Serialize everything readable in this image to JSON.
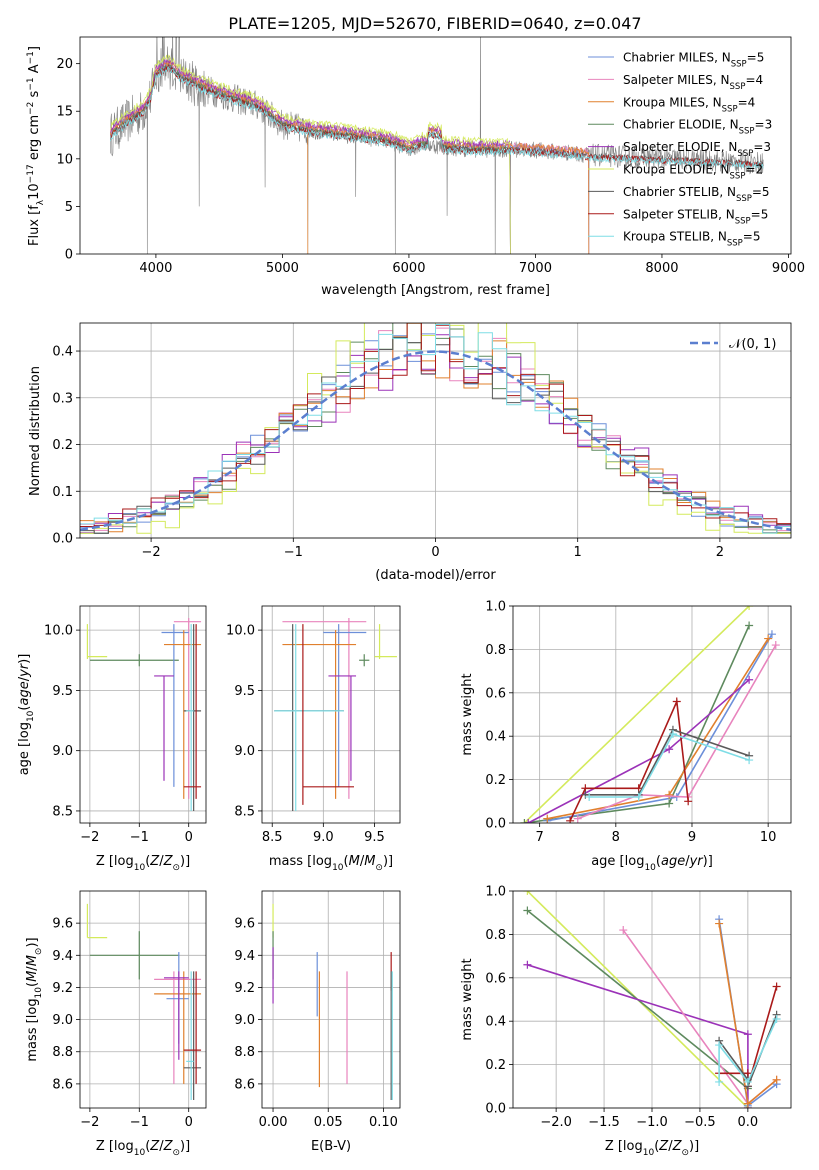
{
  "title": "PLATE=1205, MJD=52670, FIBERID=0640, z=0.047",
  "colors": {
    "Chabrier MILES": "#6c8fd9",
    "Salpeter MILES": "#e884bd",
    "Kroupa MILES": "#e0802e",
    "Chabrier ELODIE": "#5e8a5e",
    "Salpeter ELODIE": "#9b32b8",
    "Kroupa ELODIE": "#d4ea5c",
    "Chabrier STELIB": "#5a5a5a",
    "Salpeter STELIB": "#aa1a1a",
    "Kroupa STELIB": "#7fdde6",
    "data": "#808080",
    "normal": "#5b7fcf"
  },
  "chart_data": [
    {
      "id": "spectrum",
      "type": "line",
      "title": "PLATE=1205, MJD=52670, FIBERID=0640, z=0.047",
      "xlabel": "wavelength [Angstrom, rest frame]",
      "ylabel": "Flux [f_λ 10^-17 erg cm^-2 s^-1 A^-1]",
      "xlim": [
        3400,
        9020
      ],
      "ylim": [
        0,
        22.8
      ],
      "xticks": [
        4000,
        5000,
        6000,
        7000,
        8000,
        9000
      ],
      "yticks": [
        0,
        5,
        10,
        15,
        20
      ],
      "grid": false,
      "legend_position": "top-right",
      "continuum": {
        "x": [
          3640,
          3700,
          3800,
          3900,
          3960,
          4000,
          4100,
          4200,
          4400,
          4600,
          4800,
          5000,
          5200,
          5400,
          5600,
          5800,
          5900,
          6000,
          6100,
          6300,
          6500,
          6700,
          6900,
          7100,
          7300,
          7420
        ],
        "y": [
          12.5,
          13.2,
          14.2,
          15.0,
          16.5,
          19.0,
          19.8,
          18.6,
          17.3,
          16.4,
          15.6,
          13.6,
          13.0,
          12.7,
          12.3,
          12.0,
          11.6,
          11.0,
          11.6,
          11.2,
          11.0,
          11.0,
          11.0,
          10.8,
          10.6,
          10.4
        ]
      },
      "spikes_data": [
        {
          "x": 3930,
          "y": 0
        },
        {
          "x": 4130,
          "y": 26
        },
        {
          "x": 4340,
          "y": 5
        },
        {
          "x": 4861,
          "y": 7
        },
        {
          "x": 5199,
          "y": 0
        },
        {
          "x": 5577,
          "y": 6
        },
        {
          "x": 5890,
          "y": 0
        },
        {
          "x": 6300,
          "y": 4
        },
        {
          "x": 6563,
          "y": 26
        },
        {
          "x": 6680,
          "y": 0
        },
        {
          "x": 6800,
          "y": 0
        },
        {
          "x": 7420,
          "y": 0
        }
      ],
      "series": [
        {
          "name": "Chabrier MILES, N_SSP=5",
          "label_main": "Chabrier MILES, N",
          "label_sub": "SSP",
          "label_tail": "=5",
          "key": "Chabrier MILES",
          "x_end": 7420,
          "offset": 0.2
        },
        {
          "name": "Salpeter MILES, N_SSP=4",
          "label_main": "Salpeter MILES, N",
          "label_sub": "SSP",
          "label_tail": "=4",
          "key": "Salpeter MILES",
          "x_end": 7420,
          "offset": 0.35
        },
        {
          "name": "Kroupa MILES, N_SSP=4",
          "label_main": "Kroupa MILES, N",
          "label_sub": "SSP",
          "label_tail": "=4",
          "key": "Kroupa MILES",
          "x_end": 7420,
          "offset": 0.3
        },
        {
          "name": "Chabrier ELODIE, N_SSP=3",
          "label_main": "Chabrier ELODIE, N",
          "label_sub": "SSP",
          "label_tail": "=3",
          "key": "Chabrier ELODIE",
          "x_end": 6800,
          "offset": 0.0
        },
        {
          "name": "Salpeter ELODIE, N_SSP=3",
          "label_main": "Salpeter ELODIE, N",
          "label_sub": "SSP",
          "label_tail": "=3",
          "key": "Salpeter ELODIE",
          "x_end": 6800,
          "offset": 0.6
        },
        {
          "name": "Kroupa ELODIE, N_SSP=2",
          "label_main": "Kroupa ELODIE, N",
          "label_sub": "SSP",
          "label_tail": "=2",
          "key": "Kroupa ELODIE",
          "x_end": 6800,
          "offset": 0.9
        },
        {
          "name": "Chabrier STELIB, N_SSP=5",
          "label_main": "Chabrier STELIB, N",
          "label_sub": "SSP",
          "label_tail": "=5",
          "key": "Chabrier STELIB",
          "x_end": 8800,
          "offset": -0.1
        },
        {
          "name": "Salpeter STELIB, N_SSP=5",
          "label_main": "Salpeter STELIB, N",
          "label_sub": "SSP",
          "label_tail": "=5",
          "key": "Salpeter STELIB",
          "x_end": 8800,
          "offset": -0.2
        },
        {
          "name": "Kroupa STELIB, N_SSP=5",
          "label_main": "Kroupa STELIB, N",
          "label_sub": "SSP",
          "label_tail": "=5",
          "key": "Kroupa STELIB",
          "x_end": 8800,
          "offset": -0.3
        }
      ]
    },
    {
      "id": "residuals",
      "type": "line",
      "xlabel": "(data-model)/error",
      "ylabel": "Normed distribution",
      "xlim": [
        -2.5,
        2.5
      ],
      "ylim": [
        0,
        0.46
      ],
      "xticks": [
        -2,
        -1,
        0,
        1,
        2
      ],
      "yticks": [
        0.0,
        0.1,
        0.2,
        0.3,
        0.4
      ],
      "grid": true,
      "legend_position": "top-right",
      "legend": [
        "𝒩(0, 1)"
      ],
      "bin_width": 0.1,
      "series_keys": [
        "Chabrier MILES",
        "Salpeter MILES",
        "Kroupa MILES",
        "Chabrier ELODIE",
        "Salpeter ELODIE",
        "Kroupa ELODIE",
        "Chabrier STELIB",
        "Salpeter STELIB",
        "Kroupa STELIB"
      ],
      "series_seeds": [
        11,
        23,
        37,
        41,
        53,
        67,
        71,
        83,
        97
      ],
      "series_width": [
        1.0,
        1.0,
        1.0,
        0.95,
        1.05,
        0.85,
        1.0,
        1.02,
        1.0
      ]
    },
    {
      "id": "age_vs_Z",
      "type": "errorbar",
      "xlabel": "Z [log10(Z/Z⊙)]",
      "ylabel": "age [log10(age/yr)]",
      "xlim": [
        -2.2,
        0.35
      ],
      "ylim": [
        8.4,
        10.2
      ],
      "xticks": [
        -2,
        -1,
        0
      ],
      "yticks": [
        8.5,
        9.0,
        9.5,
        10.0
      ],
      "grid": true,
      "points": [
        {
          "key": "Kroupa ELODIE",
          "x": -2.05,
          "y": 9.98,
          "xlo": -2.05,
          "xhi": -1.65,
          "ylo": 9.76,
          "yhi": 10.05,
          "hy": 9.78
        },
        {
          "key": "Chabrier ELODIE",
          "x": -1.0,
          "y": 9.75,
          "xlo": -2.0,
          "xhi": -0.2,
          "ylo": 9.7,
          "yhi": 9.8
        },
        {
          "key": "Salpeter MILES",
          "x": 0.0,
          "y": 10.07,
          "xlo": -0.3,
          "xhi": 0.25,
          "ylo": 8.6,
          "yhi": 10.1
        },
        {
          "key": "Chabrier MILES",
          "x": -0.3,
          "y": 9.98,
          "xlo": -0.55,
          "xhi": 0.0,
          "ylo": 8.7,
          "yhi": 10.05
        },
        {
          "key": "Kroupa MILES",
          "x": -0.1,
          "y": 9.88,
          "xlo": -0.5,
          "xhi": 0.25,
          "ylo": 8.6,
          "yhi": 10.0
        },
        {
          "key": "Salpeter ELODIE",
          "x": -0.5,
          "y": 9.62,
          "xlo": -0.7,
          "xhi": -0.3,
          "ylo": 8.75,
          "yhi": 9.62
        },
        {
          "key": "Chabrier STELIB",
          "x": 0.1,
          "y": 9.33,
          "xlo": -0.1,
          "xhi": 0.25,
          "ylo": 8.5,
          "yhi": 10.05
        },
        {
          "key": "Kroupa STELIB",
          "x": 0.05,
          "y": 9.33,
          "xlo": -0.05,
          "xhi": 0.1,
          "ylo": 8.5,
          "yhi": 10.05
        },
        {
          "key": "Salpeter STELIB",
          "x": 0.15,
          "y": 8.7,
          "xlo": -0.1,
          "xhi": 0.25,
          "ylo": 8.6,
          "yhi": 10.05
        }
      ]
    },
    {
      "id": "age_vs_mass",
      "type": "errorbar",
      "xlabel": "mass [log10(M/M⊙)]",
      "ylabel": "",
      "xlim": [
        8.4,
        9.75
      ],
      "ylim": [
        8.4,
        10.2
      ],
      "xticks": [
        8.5,
        9.0,
        9.5
      ],
      "yticks": [
        8.5,
        9.0,
        9.5,
        10.0
      ],
      "grid": true,
      "points": [
        {
          "key": "Kroupa ELODIE",
          "x": 9.55,
          "y": 9.78,
          "xlo": 9.5,
          "xhi": 9.72,
          "ylo": 9.76,
          "yhi": 10.05
        },
        {
          "key": "Chabrier ELODIE",
          "x": 9.4,
          "y": 9.75,
          "xlo": 9.35,
          "xhi": 9.45,
          "ylo": 9.7,
          "yhi": 9.8
        },
        {
          "key": "Salpeter MILES",
          "x": 9.25,
          "y": 10.07,
          "xlo": 8.6,
          "xhi": 9.42,
          "ylo": 8.6,
          "yhi": 10.1
        },
        {
          "key": "Chabrier MILES",
          "x": 9.15,
          "y": 9.98,
          "xlo": 9.0,
          "xhi": 9.42,
          "ylo": 8.7,
          "yhi": 10.05
        },
        {
          "key": "Kroupa MILES",
          "x": 9.12,
          "y": 9.88,
          "xlo": 8.6,
          "xhi": 9.32,
          "ylo": 8.6,
          "yhi": 10.0
        },
        {
          "key": "Salpeter ELODIE",
          "x": 9.27,
          "y": 9.62,
          "xlo": 9.05,
          "xhi": 9.32,
          "ylo": 8.75,
          "yhi": 9.62
        },
        {
          "key": "Chabrier STELIB",
          "x": 8.7,
          "y": 9.33,
          "xlo": 8.52,
          "xhi": 9.2,
          "ylo": 8.5,
          "yhi": 10.05
        },
        {
          "key": "Kroupa STELIB",
          "x": 8.73,
          "y": 9.33,
          "xlo": 8.52,
          "xhi": 9.2,
          "ylo": 8.5,
          "yhi": 10.05
        },
        {
          "key": "Salpeter STELIB",
          "x": 8.8,
          "y": 8.7,
          "xlo": 8.8,
          "xhi": 9.3,
          "ylo": 8.55,
          "yhi": 10.05
        }
      ]
    },
    {
      "id": "weight_vs_age",
      "type": "line",
      "xlabel": "age [log10(age/yr)]",
      "ylabel": "mass weight",
      "xlim": [
        6.65,
        10.3
      ],
      "ylim": [
        0,
        1.0
      ],
      "xticks": [
        7,
        8,
        9,
        10
      ],
      "yticks": [
        0.0,
        0.2,
        0.4,
        0.6,
        0.8,
        1.0
      ],
      "grid": true,
      "series": [
        {
          "key": "Kroupa ELODIE",
          "x": [
            6.8,
            9.75
          ],
          "y": [
            0.0,
            1.0
          ]
        },
        {
          "key": "Chabrier ELODIE",
          "x": [
            6.8,
            8.7,
            9.75
          ],
          "y": [
            0.0,
            0.09,
            0.91
          ]
        },
        {
          "key": "Chabrier MILES",
          "x": [
            7.1,
            8.8,
            10.05
          ],
          "y": [
            0.01,
            0.12,
            0.87
          ]
        },
        {
          "key": "Kroupa MILES",
          "x": [
            7.1,
            8.7,
            10.0
          ],
          "y": [
            0.02,
            0.13,
            0.85
          ]
        },
        {
          "key": "Salpeter MILES",
          "x": [
            7.5,
            8.3,
            8.95,
            10.1
          ],
          "y": [
            0.02,
            0.13,
            0.12,
            0.82
          ]
        },
        {
          "key": "Salpeter ELODIE",
          "x": [
            6.85,
            8.7,
            9.75
          ],
          "y": [
            0.0,
            0.34,
            0.66
          ]
        },
        {
          "key": "Salpeter STELIB",
          "x": [
            7.4,
            7.6,
            8.3,
            8.8,
            8.95
          ],
          "y": [
            0.01,
            0.16,
            0.16,
            0.56,
            0.1
          ]
        },
        {
          "key": "Chabrier STELIB",
          "x": [
            7.6,
            8.3,
            8.75,
            9.75
          ],
          "y": [
            0.13,
            0.13,
            0.43,
            0.31
          ]
        },
        {
          "key": "Kroupa STELIB",
          "x": [
            7.65,
            8.3,
            8.75,
            9.75
          ],
          "y": [
            0.12,
            0.12,
            0.41,
            0.29
          ]
        }
      ]
    },
    {
      "id": "mass_vs_Z",
      "type": "errorbar",
      "xlabel": "Z [log10(Z/Z⊙)]",
      "ylabel": "mass [log10(M/M⊙)]",
      "xlim": [
        -2.2,
        0.35
      ],
      "ylim": [
        8.45,
        9.8
      ],
      "xticks": [
        -2,
        -1,
        0
      ],
      "yticks": [
        8.6,
        8.8,
        9.0,
        9.2,
        9.4,
        9.6
      ],
      "grid": true,
      "points": [
        {
          "key": "Kroupa ELODIE",
          "x": -2.05,
          "y": 9.51,
          "xlo": -2.05,
          "xhi": -1.65,
          "ylo": 9.51,
          "yhi": 9.72
        },
        {
          "key": "Chabrier ELODIE",
          "x": -1.0,
          "y": 9.4,
          "xlo": -2.0,
          "xhi": -0.2,
          "ylo": 9.25,
          "yhi": 9.55
        },
        {
          "key": "Salpeter MILES",
          "x": -0.3,
          "y": 9.25,
          "xlo": -0.7,
          "xhi": 0.25,
          "ylo": 8.6,
          "yhi": 9.3
        },
        {
          "key": "Chabrier MILES",
          "x": -0.2,
          "y": 9.13,
          "xlo": -0.45,
          "xhi": 0.0,
          "ylo": 8.85,
          "yhi": 9.42
        },
        {
          "key": "Kroupa MILES",
          "x": -0.1,
          "y": 9.16,
          "xlo": -0.7,
          "xhi": 0.25,
          "ylo": 8.6,
          "yhi": 9.3
        },
        {
          "key": "Salpeter ELODIE",
          "x": -0.2,
          "y": 9.26,
          "xlo": -0.5,
          "xhi": 0.0,
          "ylo": 8.75,
          "yhi": 9.3
        },
        {
          "key": "Chabrier STELIB",
          "x": 0.1,
          "y": 8.7,
          "xlo": -0.1,
          "xhi": 0.25,
          "ylo": 8.5,
          "yhi": 9.3
        },
        {
          "key": "Kroupa STELIB",
          "x": 0.05,
          "y": 8.74,
          "xlo": -0.05,
          "xhi": 0.1,
          "ylo": 8.5,
          "yhi": 9.3
        },
        {
          "key": "Salpeter STELIB",
          "x": 0.15,
          "y": 8.81,
          "xlo": -0.1,
          "xhi": 0.25,
          "ylo": 8.6,
          "yhi": 9.3
        }
      ]
    },
    {
      "id": "mass_vs_ebv",
      "type": "errorbar",
      "xlabel": "E(B-V)",
      "ylabel": "",
      "xlim": [
        -0.01,
        0.115
      ],
      "ylim": [
        8.45,
        9.8
      ],
      "xticks": [
        0.0,
        0.05,
        0.1
      ],
      "yticks": [
        8.6,
        8.8,
        9.0,
        9.2,
        9.4,
        9.6
      ],
      "grid": true,
      "points": [
        {
          "key": "Kroupa ELODIE",
          "x": 0.0,
          "y": 9.6,
          "ylo": 9.51,
          "yhi": 9.72
        },
        {
          "key": "Chabrier ELODIE",
          "x": 0.0,
          "y": 9.4,
          "ylo": 9.25,
          "yhi": 9.55
        },
        {
          "key": "Salpeter ELODIE",
          "x": 0.0,
          "y": 9.26,
          "ylo": 9.1,
          "yhi": 9.45
        },
        {
          "key": "Chabrier MILES",
          "x": 0.04,
          "y": 9.13,
          "ylo": 9.02,
          "yhi": 9.42
        },
        {
          "key": "Kroupa MILES",
          "x": 0.042,
          "y": 9.16,
          "ylo": 8.58,
          "yhi": 9.3
        },
        {
          "key": "Salpeter MILES",
          "x": 0.067,
          "y": 9.25,
          "ylo": 8.6,
          "yhi": 9.3
        },
        {
          "key": "Salpeter STELIB",
          "x": 0.107,
          "y": 9.3,
          "ylo": 9.18,
          "yhi": 9.42
        },
        {
          "key": "Chabrier STELIB",
          "x": 0.107,
          "y": 8.7,
          "ylo": 8.5,
          "yhi": 9.3
        },
        {
          "key": "Kroupa STELIB",
          "x": 0.108,
          "y": 8.74,
          "ylo": 8.5,
          "yhi": 9.3
        }
      ]
    },
    {
      "id": "weight_vs_Z",
      "type": "line",
      "xlabel": "Z [log10(Z/Z⊙)]",
      "ylabel": "mass weight",
      "xlim": [
        -2.45,
        0.45
      ],
      "ylim": [
        0,
        1.0
      ],
      "xticks": [
        -2.0,
        -1.5,
        -1.0,
        -0.5,
        0.0
      ],
      "yticks": [
        0.0,
        0.2,
        0.4,
        0.6,
        0.8,
        1.0
      ],
      "grid": true,
      "series": [
        {
          "key": "Kroupa ELODIE",
          "x": [
            -2.3,
            0.0
          ],
          "y": [
            1.0,
            0.0
          ]
        },
        {
          "key": "Chabrier ELODIE",
          "x": [
            -2.3,
            0.0
          ],
          "y": [
            0.91,
            0.09
          ]
        },
        {
          "key": "Salpeter ELODIE",
          "x": [
            -2.3,
            0.0,
            0.0
          ],
          "y": [
            0.66,
            0.34,
            0.0
          ]
        },
        {
          "key": "Salpeter MILES",
          "x": [
            -1.3,
            0.0,
            0.3
          ],
          "y": [
            0.82,
            0.02,
            0.13
          ]
        },
        {
          "key": "Chabrier MILES",
          "x": [
            -0.3,
            0.0,
            0.3
          ],
          "y": [
            0.87,
            0.01,
            0.11
          ]
        },
        {
          "key": "Kroupa MILES",
          "x": [
            -0.3,
            0.0,
            0.3
          ],
          "y": [
            0.85,
            0.02,
            0.13
          ]
        },
        {
          "key": "Salpeter STELIB",
          "x": [
            -0.3,
            0.0,
            0.0,
            0.3
          ],
          "y": [
            0.16,
            0.16,
            0.1,
            0.56
          ]
        },
        {
          "key": "Chabrier STELIB",
          "x": [
            -0.3,
            0.0,
            0.0,
            0.3
          ],
          "y": [
            0.31,
            0.13,
            0.1,
            0.43
          ]
        },
        {
          "key": "Kroupa STELIB",
          "x": [
            -0.3,
            -0.3,
            0.0,
            0.3
          ],
          "y": [
            0.12,
            0.29,
            0.12,
            0.41
          ]
        }
      ]
    }
  ]
}
